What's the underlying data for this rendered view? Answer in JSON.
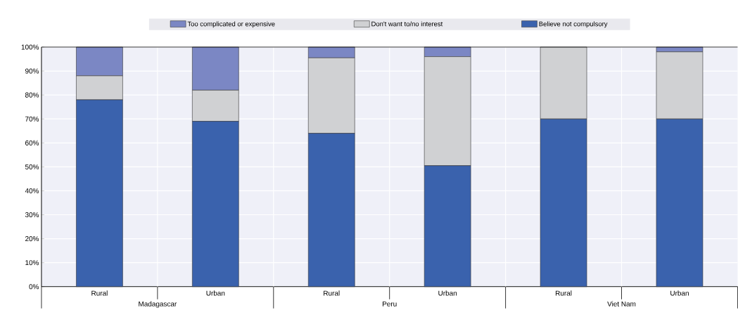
{
  "chart_data": {
    "type": "bar",
    "stacked": true,
    "categories": [
      "Rural",
      "Urban",
      "Rural",
      "Urban",
      "Rural",
      "Urban"
    ],
    "series": [
      {
        "name": "Believe not compulsory",
        "color": "#3a62ad",
        "values": [
          78,
          69,
          64,
          50.5,
          70,
          70
        ]
      },
      {
        "name": "Don't want to/no interest",
        "color": "#d0d1d3",
        "values": [
          10,
          13,
          31.5,
          45.5,
          30,
          28
        ]
      },
      {
        "name": "Too complicated or expensive",
        "color": "#7b87c4",
        "values": [
          12,
          18,
          4.5,
          4,
          0,
          2
        ]
      }
    ],
    "annotations": [
      "Madagascar",
      "Peru",
      "Viet Nam"
    ],
    "ylim": [
      0,
      100
    ],
    "yticks": [
      {
        "value": 0,
        "label": "0%"
      },
      {
        "value": 10,
        "label": "10%"
      },
      {
        "value": 20,
        "label": "20%"
      },
      {
        "value": 30,
        "label": "30%"
      },
      {
        "value": 40,
        "label": "40%"
      },
      {
        "value": 50,
        "label": "50%"
      },
      {
        "value": 60,
        "label": "60%"
      },
      {
        "value": 70,
        "label": "70%"
      },
      {
        "value": 80,
        "label": "80%"
      },
      {
        "value": 90,
        "label": "90%"
      },
      {
        "value": 100,
        "label": "100%"
      }
    ],
    "grid": true,
    "legend": "top"
  }
}
